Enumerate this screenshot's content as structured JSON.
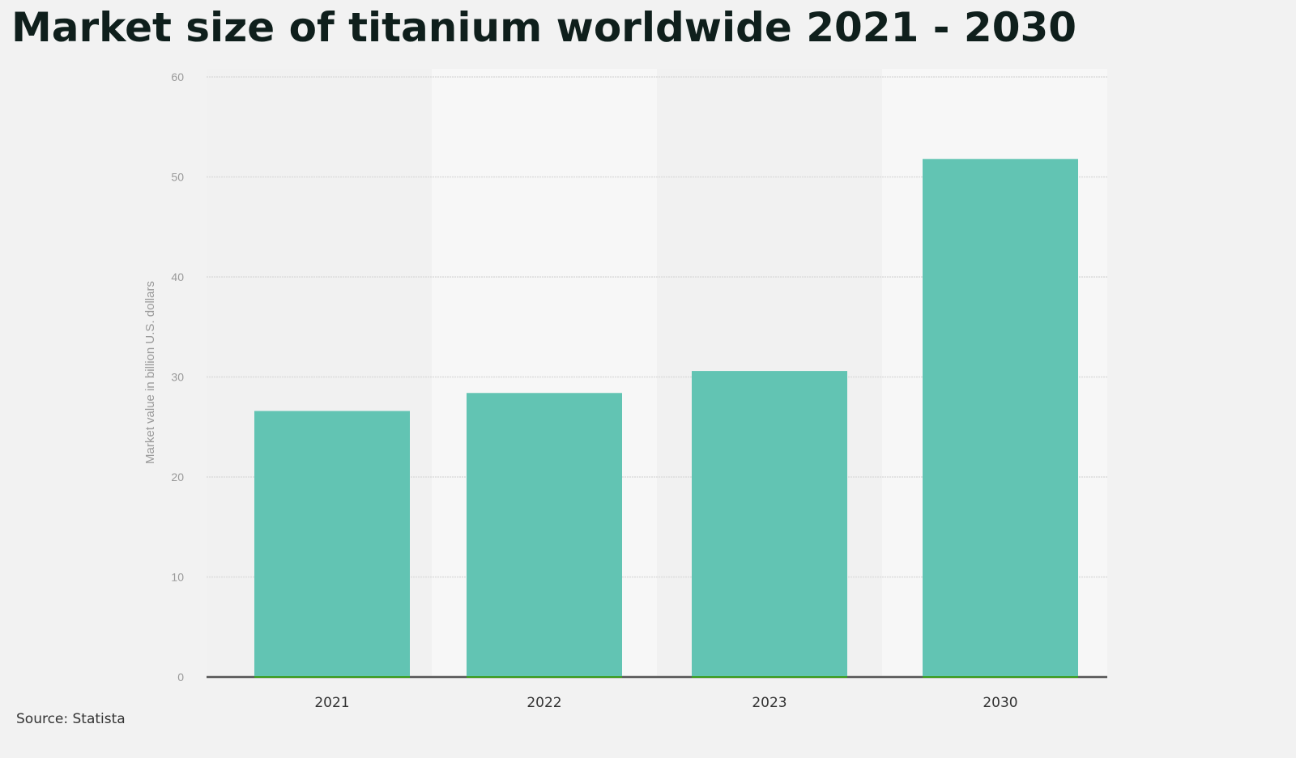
{
  "title": "Market size of titanium worldwide 2021 - 2030",
  "source": "Source: Statista",
  "chart_data": {
    "type": "bar",
    "title": "Market size of titanium worldwide 2021 - 2030",
    "categories": [
      "2021",
      "2022",
      "2023",
      "2030"
    ],
    "values": [
      26.6,
      28.4,
      30.6,
      51.8
    ],
    "xlabel": "",
    "ylabel": "Market value in billion U.S. dollars",
    "ylim": [
      0,
      60
    ],
    "yticks": [
      0,
      10,
      20,
      30,
      40,
      50,
      60
    ],
    "grid": true,
    "bar_color": "#62c4b3",
    "baseline_color": "#555555"
  }
}
